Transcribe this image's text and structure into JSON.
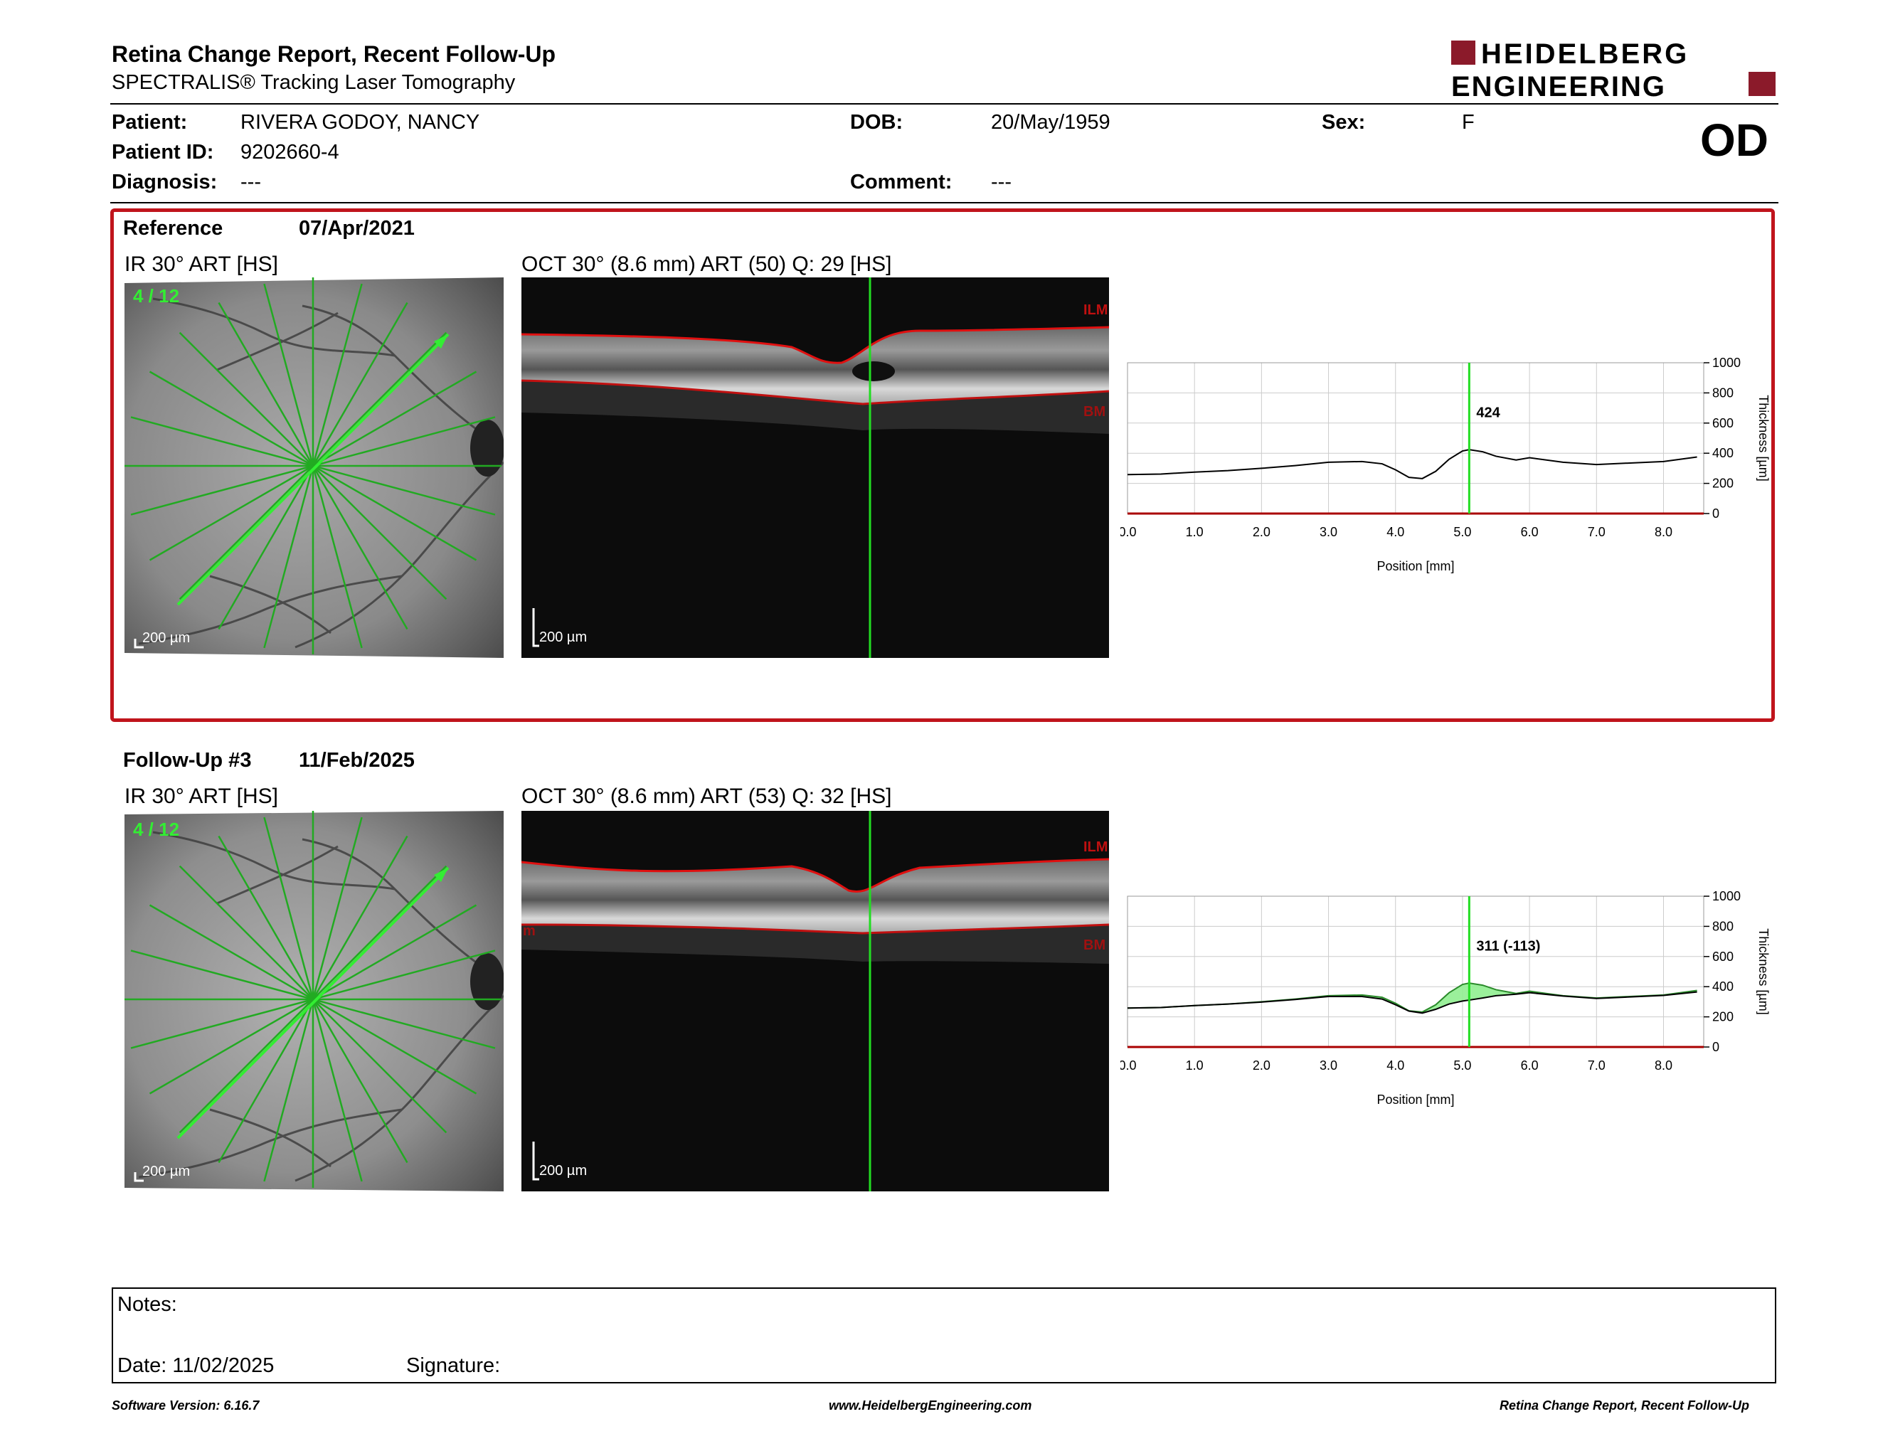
{
  "header": {
    "title": "Retina Change Report, Recent Follow-Up",
    "subtitle": "SPECTRALIS® Tracking Laser Tomography",
    "logo_line1": "HEIDELBERG",
    "logo_line2": "ENGINEERING",
    "brand_color": "#8b1a2a"
  },
  "patient": {
    "name_label": "Patient:",
    "name": "RIVERA GODOY, NANCY",
    "id_label": "Patient ID:",
    "id": "9202660-4",
    "diagnosis_label": "Diagnosis:",
    "diagnosis": "---",
    "dob_label": "DOB:",
    "dob": "20/May/1959",
    "comment_label": "Comment:",
    "comment": "---",
    "sex_label": "Sex:",
    "sex": "F",
    "eye": "OD"
  },
  "reference": {
    "label": "Reference",
    "date": "07/Apr/2021",
    "ir_label": "IR 30° ART [HS]",
    "oct_label": "OCT 30° (8.6 mm) ART (50) Q: 29 [HS]",
    "scan_counter": "4 / 12",
    "scale_ir": "200 µm",
    "scale_oct": "200 µm",
    "ilm": "ILM",
    "bm": "BM"
  },
  "followup": {
    "label": "Follow-Up #3",
    "date": "11/Feb/2025",
    "ir_label": "IR 30° ART [HS]",
    "oct_label": "OCT 30° (8.6 mm) ART (53) Q: 32 [HS]",
    "scan_counter": "4 / 12",
    "scale_ir": "200 µm",
    "scale_oct": "200 µm",
    "ilm": "ILM",
    "bm": "BM",
    "left_marker": "m"
  },
  "colors": {
    "accent_red": "#c0141c",
    "scan_green": "#22dd22",
    "gain_fill": "#90ee90"
  },
  "chart_data": [
    {
      "type": "line",
      "xlabel": "Position [mm]",
      "ylabel": "Thickness [µm]",
      "xlim": [
        0,
        8.6
      ],
      "ylim": [
        0,
        1000
      ],
      "x_ticks": [
        "0.0",
        "1.0",
        "2.0",
        "3.0",
        "4.0",
        "5.0",
        "6.0",
        "7.0",
        "8.0"
      ],
      "y_ticks": [
        "0",
        "200",
        "400",
        "600",
        "800",
        "1000"
      ],
      "grid": true,
      "cursor_x": 5.1,
      "cursor_label": "424",
      "series": [
        {
          "values_x": [
            0,
            0.5,
            1,
            1.5,
            2,
            2.5,
            3,
            3.5,
            3.8,
            4.0,
            4.2,
            4.4,
            4.6,
            4.8,
            5.0,
            5.1,
            5.3,
            5.5,
            5.8,
            6.0,
            6.5,
            7.0,
            7.5,
            8.0,
            8.5
          ],
          "values_y": [
            258,
            262,
            275,
            285,
            300,
            318,
            340,
            345,
            330,
            290,
            240,
            232,
            280,
            360,
            415,
            424,
            410,
            380,
            355,
            370,
            340,
            325,
            335,
            345,
            375
          ]
        }
      ]
    },
    {
      "type": "line",
      "xlabel": "Position [mm]",
      "ylabel": "Thickness [µm]",
      "xlim": [
        0,
        8.6
      ],
      "ylim": [
        0,
        1000
      ],
      "x_ticks": [
        "0.0",
        "1.0",
        "2.0",
        "3.0",
        "4.0",
        "5.0",
        "6.0",
        "7.0",
        "8.0"
      ],
      "y_ticks": [
        "0",
        "200",
        "400",
        "600",
        "800",
        "1000"
      ],
      "grid": true,
      "cursor_x": 5.1,
      "cursor_label": "311 (-113)",
      "series": [
        {
          "values_x": [
            0,
            0.5,
            1,
            1.5,
            2,
            2.5,
            3,
            3.5,
            3.8,
            4.0,
            4.2,
            4.4,
            4.6,
            4.8,
            5.0,
            5.1,
            5.3,
            5.5,
            5.8,
            6.0,
            6.5,
            7.0,
            7.5,
            8.0,
            8.5
          ],
          "values_y": [
            258,
            262,
            275,
            285,
            300,
            318,
            340,
            345,
            330,
            290,
            240,
            232,
            280,
            360,
            415,
            424,
            410,
            380,
            355,
            370,
            340,
            325,
            335,
            345,
            375
          ]
        },
        {
          "values_x": [
            0,
            0.5,
            1,
            1.5,
            2,
            2.5,
            3,
            3.5,
            3.8,
            4.0,
            4.2,
            4.4,
            4.6,
            4.8,
            5.0,
            5.1,
            5.3,
            5.5,
            5.8,
            6.0,
            6.5,
            7.0,
            7.5,
            8.0,
            8.5
          ],
          "values_y": [
            258,
            262,
            275,
            285,
            298,
            315,
            335,
            335,
            318,
            280,
            238,
            225,
            250,
            285,
            305,
            311,
            325,
            340,
            350,
            360,
            338,
            322,
            332,
            342,
            365
          ]
        }
      ]
    }
  ],
  "notes": {
    "notes_label": "Notes:",
    "date_label": "Date: 11/02/2025",
    "signature_label": "Signature:"
  },
  "footer": {
    "version": "Software Version: 6.16.7",
    "url": "www.HeidelbergEngineering.com",
    "report": "Retina Change Report, Recent Follow-Up"
  }
}
